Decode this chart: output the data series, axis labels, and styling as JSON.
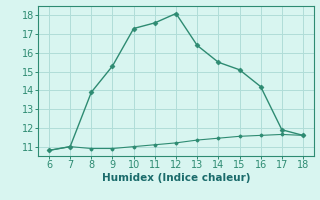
{
  "x": [
    6,
    7,
    8,
    9,
    10,
    11,
    12,
    13,
    14,
    15,
    16,
    17,
    18
  ],
  "y_upper": [
    10.8,
    11.0,
    13.9,
    15.3,
    17.3,
    17.6,
    18.1,
    16.4,
    15.5,
    15.1,
    14.2,
    11.9,
    11.6
  ],
  "y_lower": [
    10.8,
    11.0,
    10.9,
    10.9,
    11.0,
    11.1,
    11.2,
    11.35,
    11.45,
    11.55,
    11.6,
    11.65,
    11.6
  ],
  "line_color": "#2e8b72",
  "bg_color": "#d8f5f0",
  "grid_color": "#b0ddd8",
  "xlabel": "Humidex (Indice chaleur)",
  "xlabel_color": "#1a6b6b",
  "xlim": [
    5.5,
    18.5
  ],
  "ylim": [
    10.5,
    18.5
  ],
  "xticks": [
    6,
    7,
    8,
    9,
    10,
    11,
    12,
    13,
    14,
    15,
    16,
    17,
    18
  ],
  "yticks": [
    11,
    12,
    13,
    14,
    15,
    16,
    17,
    18
  ],
  "tick_color": "#2e8b72",
  "spine_color": "#2e8b72",
  "tick_fontsize": 7,
  "xlabel_fontsize": 7.5
}
